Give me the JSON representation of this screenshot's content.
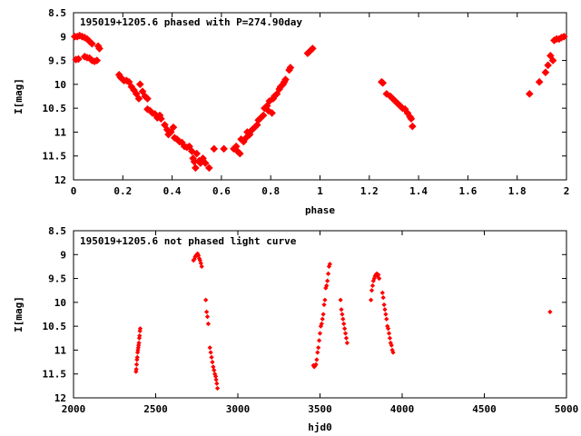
{
  "chart_data": [
    {
      "type": "scatter",
      "title": "195019+1205.6 phased with P=274.90day",
      "xlabel": "phase",
      "ylabel": "I[mag]",
      "xlim": [
        0,
        2
      ],
      "ylim": [
        12,
        8.5
      ],
      "y_inverted": true,
      "xticks": [
        "0",
        "0.2",
        "0.4",
        "0.6",
        "0.8",
        "1",
        "1.2",
        "1.4",
        "1.6",
        "1.8",
        "2"
      ],
      "yticks": [
        "8.5",
        "9",
        "9.5",
        "10",
        "10.5",
        "11",
        "11.5",
        "12"
      ],
      "grid": false,
      "marker_color": "#ff0000",
      "marker": "filled-diamond",
      "points": [
        [
          0.005,
          9.0
        ],
        [
          0.015,
          9.0
        ],
        [
          0.025,
          8.98
        ],
        [
          0.035,
          9.0
        ],
        [
          0.045,
          9.02
        ],
        [
          0.055,
          9.05
        ],
        [
          0.065,
          9.1
        ],
        [
          0.075,
          9.15
        ],
        [
          0.01,
          9.48
        ],
        [
          0.02,
          9.47
        ],
        [
          0.045,
          9.42
        ],
        [
          0.055,
          9.44
        ],
        [
          0.065,
          9.45
        ],
        [
          0.075,
          9.5
        ],
        [
          0.085,
          9.52
        ],
        [
          0.095,
          9.5
        ],
        [
          0.1,
          9.2
        ],
        [
          0.105,
          9.25
        ],
        [
          0.185,
          9.8
        ],
        [
          0.19,
          9.85
        ],
        [
          0.2,
          9.9
        ],
        [
          0.205,
          9.92
        ],
        [
          0.215,
          9.92
        ],
        [
          0.225,
          9.95
        ],
        [
          0.235,
          10.05
        ],
        [
          0.245,
          10.12
        ],
        [
          0.255,
          10.2
        ],
        [
          0.265,
          10.3
        ],
        [
          0.27,
          10.0
        ],
        [
          0.28,
          10.15
        ],
        [
          0.29,
          10.25
        ],
        [
          0.3,
          10.3
        ],
        [
          0.3,
          10.52
        ],
        [
          0.31,
          10.55
        ],
        [
          0.32,
          10.6
        ],
        [
          0.33,
          10.62
        ],
        [
          0.34,
          10.7
        ],
        [
          0.35,
          10.65
        ],
        [
          0.355,
          10.72
        ],
        [
          0.37,
          10.85
        ],
        [
          0.38,
          10.95
        ],
        [
          0.385,
          11.05
        ],
        [
          0.395,
          11.0
        ],
        [
          0.405,
          10.9
        ],
        [
          0.41,
          11.12
        ],
        [
          0.42,
          11.15
        ],
        [
          0.43,
          11.2
        ],
        [
          0.44,
          11.22
        ],
        [
          0.45,
          11.3
        ],
        [
          0.46,
          11.32
        ],
        [
          0.47,
          11.3
        ],
        [
          0.48,
          11.4
        ],
        [
          0.485,
          11.55
        ],
        [
          0.49,
          11.62
        ],
        [
          0.495,
          11.75
        ],
        [
          0.5,
          11.45
        ],
        [
          0.51,
          11.6
        ],
        [
          0.515,
          11.65
        ],
        [
          0.525,
          11.55
        ],
        [
          0.535,
          11.65
        ],
        [
          0.55,
          11.75
        ],
        [
          0.57,
          11.35
        ],
        [
          0.61,
          11.35
        ],
        [
          0.65,
          11.35
        ],
        [
          0.66,
          11.3
        ],
        [
          0.665,
          11.4
        ],
        [
          0.675,
          11.45
        ],
        [
          0.68,
          11.15
        ],
        [
          0.69,
          11.2
        ],
        [
          0.7,
          11.12
        ],
        [
          0.705,
          11.0
        ],
        [
          0.715,
          11.05
        ],
        [
          0.725,
          10.95
        ],
        [
          0.735,
          10.9
        ],
        [
          0.745,
          10.85
        ],
        [
          0.75,
          10.75
        ],
        [
          0.76,
          10.7
        ],
        [
          0.77,
          10.65
        ],
        [
          0.775,
          10.5
        ],
        [
          0.785,
          10.45
        ],
        [
          0.79,
          10.55
        ],
        [
          0.795,
          10.35
        ],
        [
          0.805,
          10.6
        ],
        [
          0.81,
          10.3
        ],
        [
          0.815,
          10.25
        ],
        [
          0.825,
          10.2
        ],
        [
          0.835,
          10.1
        ],
        [
          0.84,
          10.05
        ],
        [
          0.85,
          10.0
        ],
        [
          0.855,
          9.95
        ],
        [
          0.86,
          9.9
        ],
        [
          0.875,
          9.7
        ],
        [
          0.88,
          9.65
        ],
        [
          0.95,
          9.35
        ],
        [
          0.96,
          9.3
        ],
        [
          0.97,
          9.25
        ],
        [
          1.25,
          9.95
        ],
        [
          1.255,
          9.97
        ],
        [
          1.27,
          10.2
        ],
        [
          1.285,
          10.25
        ],
        [
          1.295,
          10.3
        ],
        [
          1.305,
          10.35
        ],
        [
          1.315,
          10.4
        ],
        [
          1.325,
          10.45
        ],
        [
          1.335,
          10.5
        ],
        [
          1.345,
          10.52
        ],
        [
          1.355,
          10.6
        ],
        [
          1.365,
          10.68
        ],
        [
          1.37,
          10.72
        ],
        [
          1.375,
          10.88
        ],
        [
          1.85,
          10.2
        ],
        [
          1.89,
          9.95
        ],
        [
          1.915,
          9.75
        ],
        [
          1.925,
          9.6
        ],
        [
          1.935,
          9.4
        ],
        [
          1.945,
          9.5
        ],
        [
          1.95,
          9.08
        ],
        [
          1.96,
          9.05
        ],
        [
          1.97,
          9.05
        ],
        [
          1.98,
          9.02
        ],
        [
          1.99,
          9.0
        ]
      ]
    },
    {
      "type": "scatter",
      "title": "195019+1205.6 not phased light curve",
      "xlabel": "hjd0",
      "ylabel": "I[mag]",
      "xlim": [
        2000,
        5000
      ],
      "ylim": [
        12,
        8.5
      ],
      "y_inverted": true,
      "xticks": [
        "2000",
        "2500",
        "3000",
        "3500",
        "4000",
        "4500",
        "5000"
      ],
      "yticks": [
        "8.5",
        "9",
        "9.5",
        "10",
        "10.5",
        "11",
        "11.5",
        "12"
      ],
      "grid": false,
      "marker_color": "#ff0000",
      "marker": "small-diamond",
      "points": [
        [
          2380,
          11.45
        ],
        [
          2382,
          11.4
        ],
        [
          2384,
          11.3
        ],
        [
          2386,
          11.2
        ],
        [
          2388,
          11.15
        ],
        [
          2390,
          11.05
        ],
        [
          2392,
          11.0
        ],
        [
          2394,
          10.95
        ],
        [
          2396,
          10.9
        ],
        [
          2398,
          10.85
        ],
        [
          2400,
          10.75
        ],
        [
          2402,
          10.7
        ],
        [
          2404,
          10.6
        ],
        [
          2406,
          10.55
        ],
        [
          2730,
          9.12
        ],
        [
          2735,
          9.1
        ],
        [
          2740,
          9.05
        ],
        [
          2745,
          9.02
        ],
        [
          2750,
          9.0
        ],
        [
          2755,
          8.98
        ],
        [
          2760,
          9.02
        ],
        [
          2765,
          9.08
        ],
        [
          2770,
          9.12
        ],
        [
          2775,
          9.18
        ],
        [
          2780,
          9.25
        ],
        [
          2805,
          9.95
        ],
        [
          2810,
          10.2
        ],
        [
          2815,
          10.3
        ],
        [
          2820,
          10.45
        ],
        [
          2830,
          10.95
        ],
        [
          2835,
          11.05
        ],
        [
          2840,
          11.15
        ],
        [
          2845,
          11.25
        ],
        [
          2850,
          11.35
        ],
        [
          2855,
          11.42
        ],
        [
          2860,
          11.5
        ],
        [
          2865,
          11.55
        ],
        [
          2868,
          11.62
        ],
        [
          2872,
          11.7
        ],
        [
          2876,
          11.8
        ],
        [
          3460,
          11.32
        ],
        [
          3465,
          11.35
        ],
        [
          3470,
          11.33
        ],
        [
          3475,
          11.3
        ],
        [
          3480,
          11.2
        ],
        [
          3485,
          11.05
        ],
        [
          3490,
          10.95
        ],
        [
          3495,
          10.8
        ],
        [
          3500,
          10.65
        ],
        [
          3505,
          10.5
        ],
        [
          3510,
          10.45
        ],
        [
          3515,
          10.35
        ],
        [
          3520,
          10.25
        ],
        [
          3525,
          10.05
        ],
        [
          3530,
          9.95
        ],
        [
          3535,
          9.7
        ],
        [
          3540,
          9.65
        ],
        [
          3545,
          9.55
        ],
        [
          3550,
          9.4
        ],
        [
          3555,
          9.25
        ],
        [
          3560,
          9.2
        ],
        [
          3625,
          9.95
        ],
        [
          3630,
          10.15
        ],
        [
          3635,
          10.25
        ],
        [
          3640,
          10.35
        ],
        [
          3645,
          10.45
        ],
        [
          3650,
          10.55
        ],
        [
          3655,
          10.65
        ],
        [
          3660,
          10.75
        ],
        [
          3665,
          10.85
        ],
        [
          3810,
          9.95
        ],
        [
          3815,
          9.75
        ],
        [
          3820,
          9.65
        ],
        [
          3825,
          9.55
        ],
        [
          3830,
          9.5
        ],
        [
          3835,
          9.45
        ],
        [
          3840,
          9.42
        ],
        [
          3845,
          9.4
        ],
        [
          3850,
          9.45
        ],
        [
          3855,
          9.42
        ],
        [
          3860,
          9.5
        ],
        [
          3880,
          9.8
        ],
        [
          3885,
          9.9
        ],
        [
          3890,
          10.05
        ],
        [
          3895,
          10.15
        ],
        [
          3900,
          10.25
        ],
        [
          3905,
          10.35
        ],
        [
          3910,
          10.5
        ],
        [
          3915,
          10.55
        ],
        [
          3920,
          10.65
        ],
        [
          3925,
          10.75
        ],
        [
          3930,
          10.85
        ],
        [
          3935,
          10.9
        ],
        [
          3940,
          11.0
        ],
        [
          3945,
          11.05
        ],
        [
          4900,
          10.2
        ]
      ]
    }
  ]
}
